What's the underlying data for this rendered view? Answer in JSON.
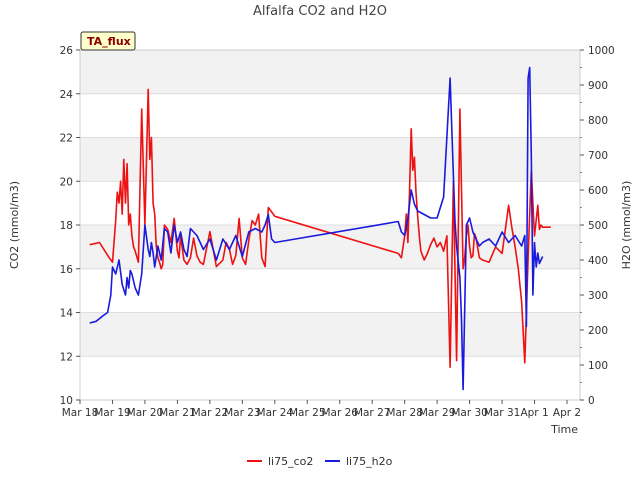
{
  "chart_data": {
    "type": "line",
    "title": "Alfalfa CO2 and H2O",
    "xlabel": "Time",
    "ylabel": "CO2 (mmol/m3)",
    "y2label": "H2O (mmol/m3)",
    "badge": "TA_flux",
    "xlim": [
      -0.4,
      15
    ],
    "ylim": [
      10,
      26
    ],
    "y2lim": [
      0,
      1000
    ],
    "x_ticks": [
      {
        "x": -0.4,
        "label": "Mar 18"
      },
      {
        "x": 0.6,
        "label": "Mar 19"
      },
      {
        "x": 1.6,
        "label": "Mar 20"
      },
      {
        "x": 2.6,
        "label": "Mar 21"
      },
      {
        "x": 3.6,
        "label": "Mar 22"
      },
      {
        "x": 4.6,
        "label": "Mar 23"
      },
      {
        "x": 5.6,
        "label": "Mar 24"
      },
      {
        "x": 6.6,
        "label": "Mar 25"
      },
      {
        "x": 7.6,
        "label": "Mar 26"
      },
      {
        "x": 8.6,
        "label": "Mar 27"
      },
      {
        "x": 9.6,
        "label": "Mar 28"
      },
      {
        "x": 10.6,
        "label": "Mar 29"
      },
      {
        "x": 11.6,
        "label": "Mar 30"
      },
      {
        "x": 12.6,
        "label": "Mar 31"
      },
      {
        "x": 13.6,
        "label": "Apr 1"
      },
      {
        "x": 14.6,
        "label": "Apr 2"
      }
    ],
    "y_ticks": [
      10,
      12,
      14,
      16,
      18,
      20,
      22,
      24,
      26
    ],
    "y2_ticks": [
      0,
      100,
      200,
      300,
      400,
      500,
      600,
      700,
      800,
      900,
      1000
    ],
    "legend_position": "bottom-center",
    "series": [
      {
        "name": "li75_co2",
        "axis": "left",
        "color": "#ee1111",
        "x": [
          -0.1,
          0.2,
          0.5,
          0.6,
          0.7,
          0.75,
          0.8,
          0.85,
          0.9,
          0.95,
          1.0,
          1.05,
          1.1,
          1.15,
          1.2,
          1.25,
          1.3,
          1.4,
          1.5,
          1.6,
          1.7,
          1.75,
          1.8,
          1.85,
          1.9,
          1.95,
          2.0,
          2.05,
          2.1,
          2.15,
          2.2,
          2.3,
          2.4,
          2.5,
          2.6,
          2.65,
          2.7,
          2.8,
          2.9,
          3.0,
          3.1,
          3.2,
          3.3,
          3.4,
          3.6,
          3.8,
          4.0,
          4.1,
          4.2,
          4.3,
          4.4,
          4.5,
          4.6,
          4.7,
          4.8,
          4.9,
          5.0,
          5.1,
          5.2,
          5.3,
          5.4,
          5.5,
          5.6,
          9.4,
          9.5,
          9.6,
          9.65,
          9.7,
          9.75,
          9.8,
          9.85,
          9.9,
          9.95,
          10.0,
          10.05,
          10.1,
          10.2,
          10.3,
          10.4,
          10.5,
          10.6,
          10.7,
          10.8,
          10.9,
          11.0,
          11.1,
          11.2,
          11.3,
          11.4,
          11.45,
          11.5,
          11.55,
          11.6,
          11.65,
          11.7,
          11.75,
          11.8,
          11.9,
          12.0,
          12.2,
          12.4,
          12.6,
          12.8,
          12.9,
          13.0,
          13.1,
          13.2,
          13.3,
          13.4,
          13.5,
          13.6,
          13.7,
          13.75,
          13.8,
          13.85,
          13.9,
          13.95,
          14.0,
          14.05,
          14.1
        ],
        "values": [
          17.1,
          17.2,
          16.5,
          16.3,
          18.2,
          19.5,
          19.0,
          20.0,
          18.5,
          21.0,
          19.0,
          20.8,
          18.0,
          18.5,
          17.5,
          17.0,
          16.8,
          16.3,
          23.3,
          18.0,
          24.2,
          21.0,
          22.0,
          19.0,
          18.5,
          17.0,
          16.5,
          16.3,
          16.0,
          16.2,
          18.0,
          17.8,
          17.2,
          18.3,
          16.8,
          16.5,
          17.5,
          16.4,
          16.2,
          16.5,
          17.4,
          16.6,
          16.3,
          16.2,
          17.7,
          16.1,
          16.4,
          17.2,
          16.9,
          16.2,
          16.6,
          18.3,
          16.5,
          16.2,
          17.3,
          18.2,
          18.0,
          18.5,
          16.5,
          16.1,
          18.8,
          18.6,
          18.4,
          16.7,
          16.5,
          17.5,
          18.5,
          17.2,
          19.5,
          22.4,
          20.5,
          21.1,
          19.5,
          18.4,
          17.5,
          16.8,
          16.4,
          16.7,
          17.1,
          17.4,
          17.0,
          17.2,
          16.8,
          17.5,
          11.5,
          20.0,
          11.8,
          23.3,
          16.0,
          16.5,
          17.5,
          18.0,
          17.0,
          16.5,
          16.6,
          17.6,
          17.4,
          16.5,
          16.4,
          16.3,
          17.0,
          16.7,
          18.9,
          17.9,
          17.0,
          16.0,
          14.5,
          11.7,
          16.5,
          20.5,
          17.5,
          18.9,
          17.8,
          18.0,
          17.9,
          17.9,
          17.9,
          17.9,
          17.9,
          17.9
        ]
      },
      {
        "name": "li75_h2o",
        "axis": "right",
        "color": "#1a1add",
        "x": [
          -0.1,
          0.1,
          0.3,
          0.45,
          0.55,
          0.6,
          0.7,
          0.8,
          0.9,
          1.0,
          1.05,
          1.1,
          1.15,
          1.2,
          1.3,
          1.4,
          1.5,
          1.6,
          1.7,
          1.75,
          1.8,
          1.85,
          1.9,
          2.0,
          2.1,
          2.2,
          2.3,
          2.4,
          2.5,
          2.6,
          2.7,
          2.8,
          2.9,
          3.0,
          3.2,
          3.4,
          3.6,
          3.8,
          4.0,
          4.2,
          4.4,
          4.6,
          4.8,
          5.0,
          5.2,
          5.3,
          5.4,
          5.5,
          5.6,
          9.4,
          9.5,
          9.6,
          9.7,
          9.8,
          9.9,
          10.0,
          10.2,
          10.4,
          10.6,
          10.8,
          11.0,
          11.1,
          11.15,
          11.2,
          11.3,
          11.35,
          11.4,
          11.5,
          11.6,
          11.7,
          11.8,
          11.9,
          12.0,
          12.2,
          12.4,
          12.6,
          12.8,
          13.0,
          13.2,
          13.3,
          13.35,
          13.4,
          13.45,
          13.5,
          13.55,
          13.6,
          13.65,
          13.7,
          13.75,
          13.8,
          13.85
        ],
        "values": [
          220,
          225,
          240,
          250,
          300,
          380,
          360,
          400,
          330,
          300,
          350,
          320,
          370,
          360,
          320,
          300,
          360,
          500,
          430,
          410,
          450,
          420,
          380,
          440,
          400,
          490,
          480,
          420,
          500,
          450,
          480,
          430,
          410,
          490,
          470,
          430,
          460,
          400,
          460,
          430,
          470,
          410,
          480,
          490,
          480,
          500,
          530,
          460,
          450,
          510,
          480,
          470,
          520,
          600,
          560,
          540,
          530,
          520,
          520,
          580,
          920,
          640,
          510,
          440,
          350,
          230,
          30,
          500,
          520,
          480,
          460,
          440,
          450,
          460,
          440,
          480,
          450,
          470,
          440,
          470,
          210,
          920,
          950,
          700,
          300,
          450,
          380,
          420,
          390,
          400,
          410
        ]
      }
    ]
  }
}
